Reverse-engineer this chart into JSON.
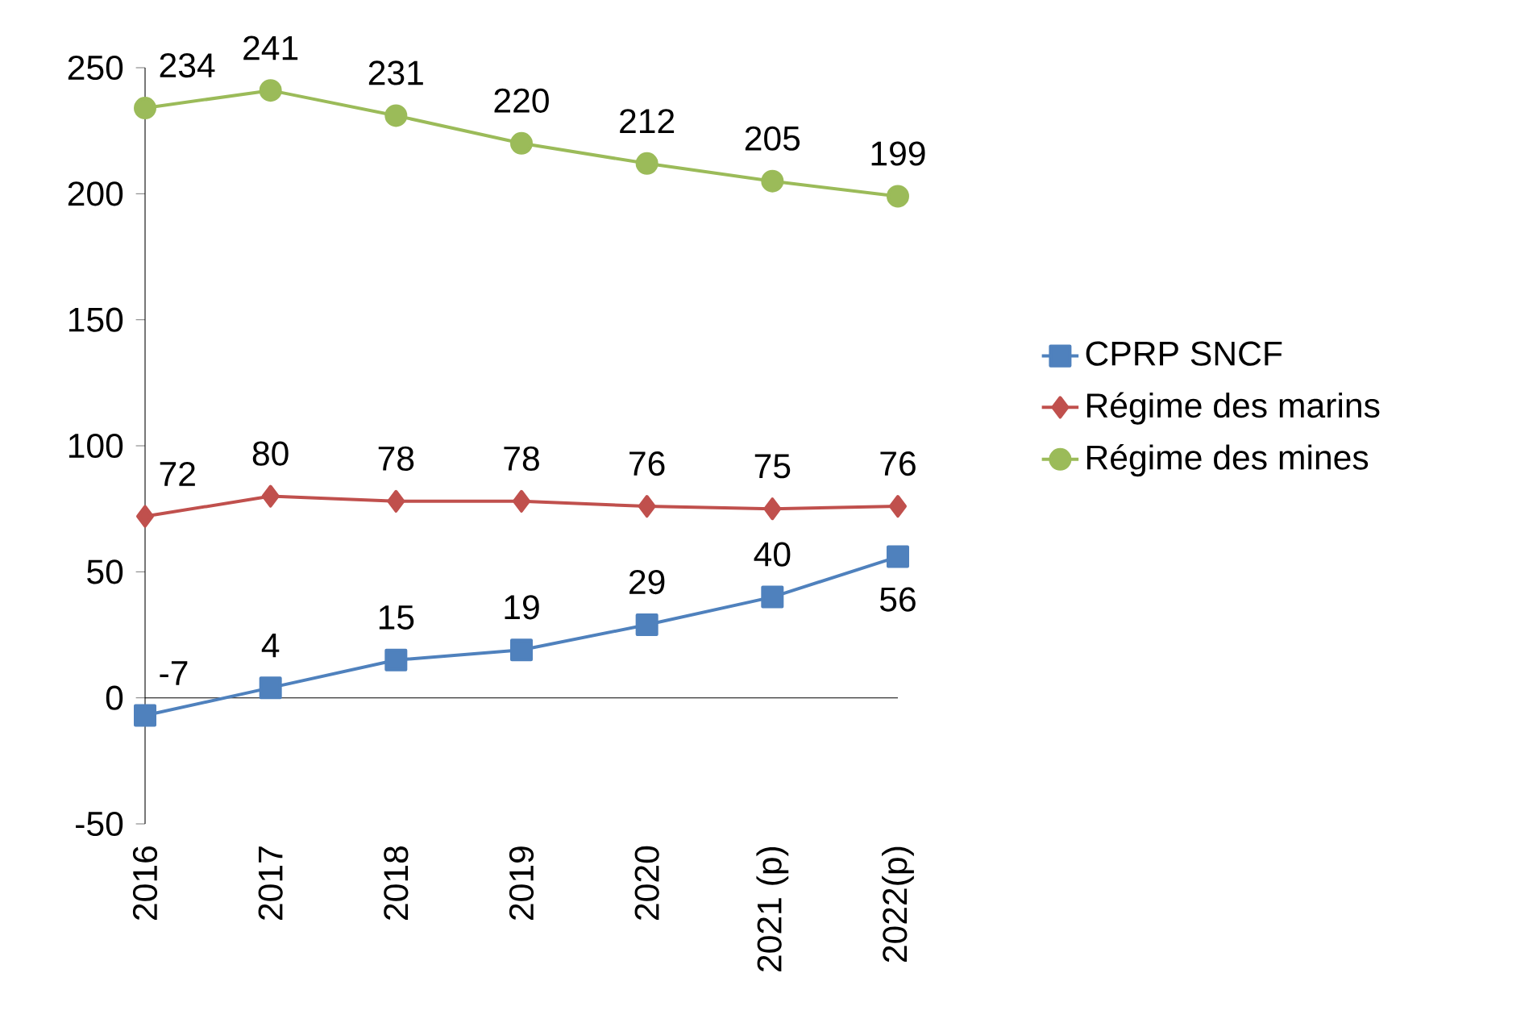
{
  "chart_data": {
    "type": "line",
    "categories": [
      "2016",
      "2017",
      "2018",
      "2019",
      "2020",
      "2021 (p)",
      "2022(p)"
    ],
    "series": [
      {
        "name": "CPRP SNCF",
        "color": "#4f81bd",
        "marker": "square",
        "values": [
          -7,
          4,
          15,
          19,
          29,
          40,
          56
        ]
      },
      {
        "name": "Régime des marins",
        "color": "#c0504d",
        "marker": "diamond",
        "values": [
          72,
          80,
          78,
          78,
          76,
          75,
          76
        ]
      },
      {
        "name": "Régime des mines",
        "color": "#9bbb59",
        "marker": "circle",
        "values": [
          234,
          241,
          231,
          220,
          212,
          205,
          199
        ]
      }
    ],
    "ylim": [
      -50,
      250
    ],
    "yticks": [
      -50,
      0,
      50,
      100,
      150,
      200,
      250
    ],
    "data_labels": true,
    "legend": "right"
  }
}
